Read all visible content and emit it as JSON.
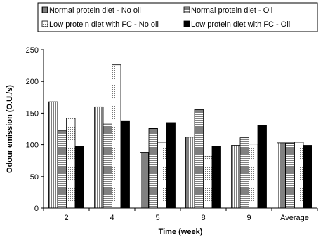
{
  "chart_data": {
    "type": "bar",
    "xlabel": "Time (week)",
    "ylabel": "Odour emission (O.U./s)",
    "ylim": [
      0,
      250
    ],
    "yticks": [
      0,
      50,
      100,
      150,
      200,
      250
    ],
    "categories": [
      "2",
      "4",
      "5",
      "8",
      "9",
      "Average"
    ],
    "series": [
      {
        "name": "Normal protein diet - No oil",
        "pattern": "vstripe",
        "values": [
          168,
          160,
          88,
          112,
          99,
          103
        ]
      },
      {
        "name": "Normal protein diet - Oil",
        "pattern": "hstripe",
        "values": [
          123,
          134,
          126,
          156,
          111,
          103
        ]
      },
      {
        "name": "Low protein diet with FC - No oil",
        "pattern": "dots",
        "values": [
          142,
          226,
          104,
          82,
          101,
          104
        ]
      },
      {
        "name": "Low protein diet with FC - Oil",
        "pattern": "black",
        "values": [
          97,
          138,
          135,
          98,
          131,
          99
        ]
      }
    ],
    "grid": false,
    "legend_position": "top"
  }
}
